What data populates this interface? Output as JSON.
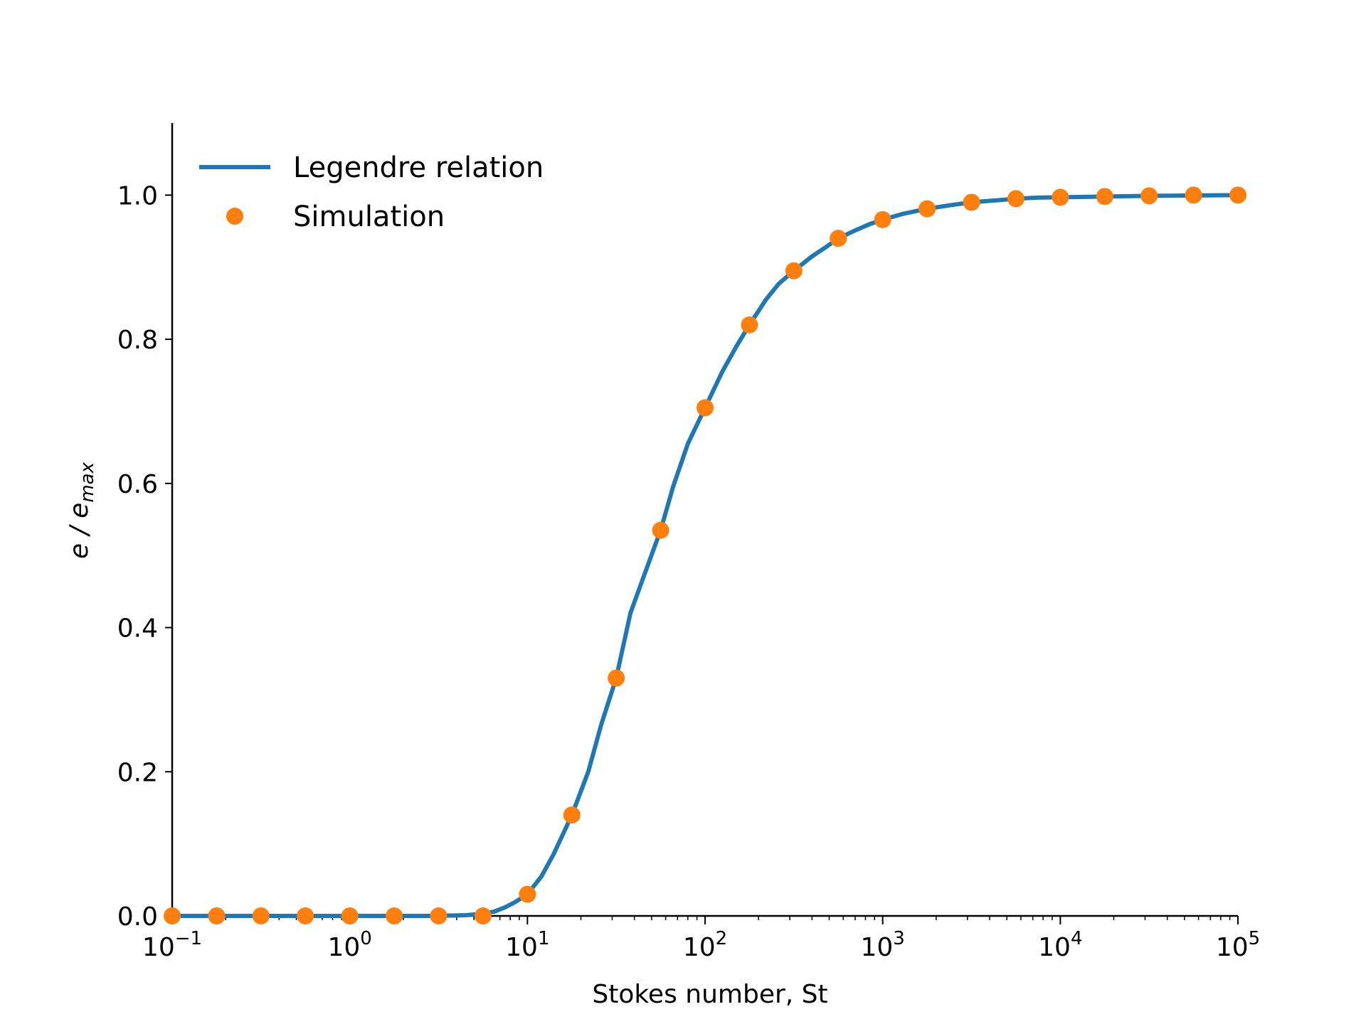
{
  "chart_data": {
    "type": "line",
    "xscale": "log",
    "xlim": [
      0.1,
      100000
    ],
    "ylim": [
      0,
      1.1
    ],
    "xlabel": "Stokes number, St",
    "ylabel_main": "e / e",
    "ylabel_sub": "max",
    "grid": false,
    "legend_position": "top-left",
    "x_ticks": [
      {
        "base": "10",
        "exp": "−1",
        "value": 0.1
      },
      {
        "base": "10",
        "exp": "0",
        "value": 1
      },
      {
        "base": "10",
        "exp": "1",
        "value": 10
      },
      {
        "base": "10",
        "exp": "2",
        "value": 100
      },
      {
        "base": "10",
        "exp": "3",
        "value": 1000
      },
      {
        "base": "10",
        "exp": "4",
        "value": 10000
      },
      {
        "base": "10",
        "exp": "5",
        "value": 100000
      }
    ],
    "y_ticks": [
      {
        "label": "0.0",
        "value": 0.0
      },
      {
        "label": "0.2",
        "value": 0.2
      },
      {
        "label": "0.4",
        "value": 0.4
      },
      {
        "label": "0.6",
        "value": 0.6
      },
      {
        "label": "0.8",
        "value": 0.8
      },
      {
        "label": "1.0",
        "value": 1.0
      }
    ],
    "series": [
      {
        "name": "Legendre relation",
        "style": "line",
        "color": "#1f77b4",
        "x": [
          0.1,
          1,
          3,
          4.5,
          5.6,
          6.5,
          7.5,
          8.5,
          10,
          12,
          14,
          17.8,
          22,
          26,
          31.6,
          38,
          45,
          56.2,
          66,
          80,
          100,
          125,
          150,
          177.8,
          220,
          260,
          316,
          400,
          480,
          562,
          700,
          850,
          1000,
          1300,
          1778,
          2400,
          3162,
          4500,
          5623,
          7500,
          10000,
          17783,
          31623,
          56234,
          100000
        ],
        "y": [
          0.0,
          0.0,
          0.0,
          0.001,
          0.003,
          0.006,
          0.012,
          0.019,
          0.03,
          0.055,
          0.085,
          0.14,
          0.2,
          0.265,
          0.33,
          0.42,
          0.47,
          0.535,
          0.595,
          0.655,
          0.705,
          0.755,
          0.79,
          0.82,
          0.855,
          0.877,
          0.895,
          0.915,
          0.928,
          0.94,
          0.951,
          0.96,
          0.966,
          0.974,
          0.981,
          0.986,
          0.99,
          0.993,
          0.995,
          0.9965,
          0.997,
          0.998,
          0.999,
          0.9995,
          1.0
        ]
      },
      {
        "name": "Simulation",
        "style": "markers",
        "color": "#ff7f0e",
        "x": [
          0.1,
          0.178,
          0.316,
          0.562,
          1,
          1.778,
          3.162,
          5.623,
          10,
          17.78,
          31.62,
          56.23,
          100,
          177.8,
          316.2,
          562.3,
          1000,
          1778,
          3162,
          5623,
          10000,
          17783,
          31623,
          56234,
          100000
        ],
        "y": [
          0.0,
          0.0,
          0.0,
          0.0,
          0.0,
          0.0,
          0.0,
          0.0,
          0.03,
          0.14,
          0.33,
          0.535,
          0.705,
          0.82,
          0.895,
          0.94,
          0.966,
          0.981,
          0.99,
          0.995,
          0.997,
          0.998,
          0.999,
          1.0,
          1.0
        ]
      }
    ]
  }
}
